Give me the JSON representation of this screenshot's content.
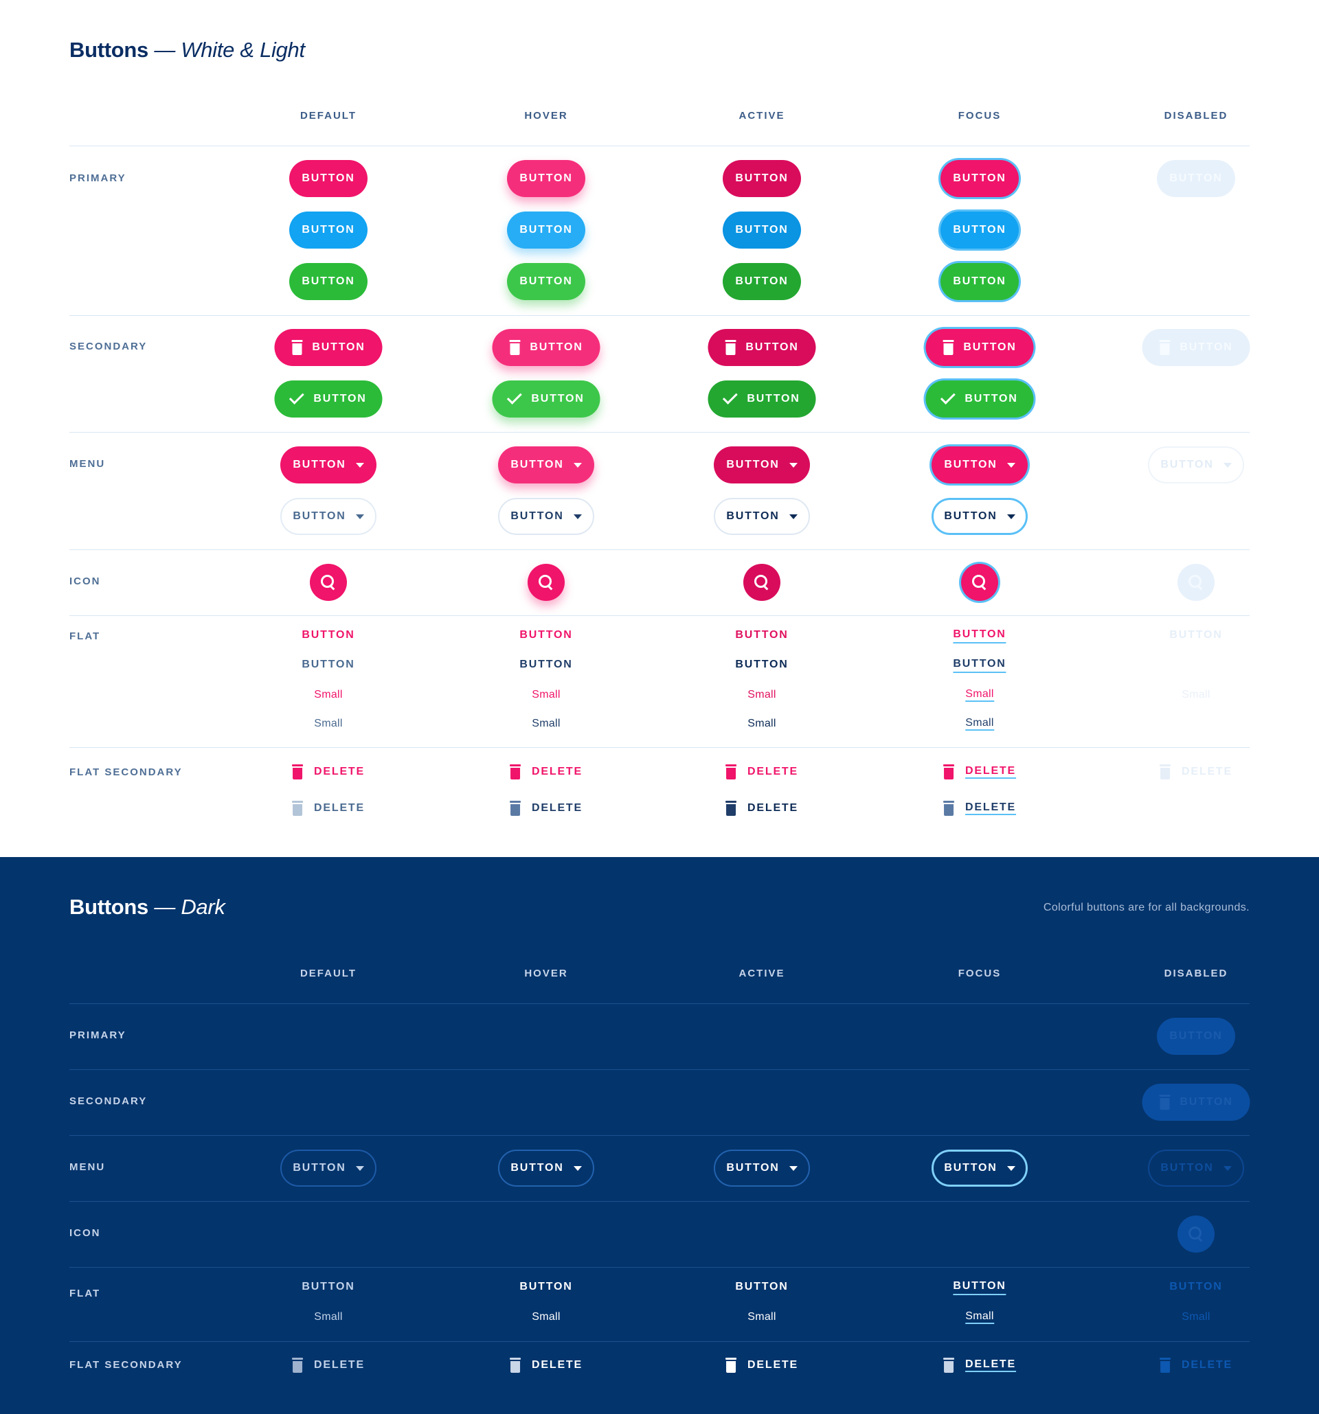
{
  "light": {
    "title": "Buttons",
    "title_suffix": "— White & Light",
    "columns": [
      "DEFAULT",
      "HOVER",
      "ACTIVE",
      "FOCUS",
      "DISABLED"
    ],
    "rows": [
      "PRIMARY",
      "SECONDARY",
      "MENU",
      "ICON",
      "FLAT",
      "FLAT SECONDARY"
    ]
  },
  "dark": {
    "title": "Buttons",
    "title_suffix": "— Dark",
    "note": "Colorful buttons are for all backgrounds.",
    "columns": [
      "DEFAULT",
      "HOVER",
      "ACTIVE",
      "FOCUS",
      "DISABLED"
    ],
    "rows": [
      "PRIMARY",
      "SECONDARY",
      "MENU",
      "ICON",
      "FLAT",
      "FLAT SECONDARY"
    ]
  },
  "labels": {
    "button": "BUTTON",
    "small": "Small",
    "delete": "DELETE"
  },
  "colors": {
    "pink": "#f0146a",
    "blue": "#12a3f2",
    "green": "#2bbb39",
    "navy": "#04346c",
    "focus_ring": "#5ac0f6"
  }
}
